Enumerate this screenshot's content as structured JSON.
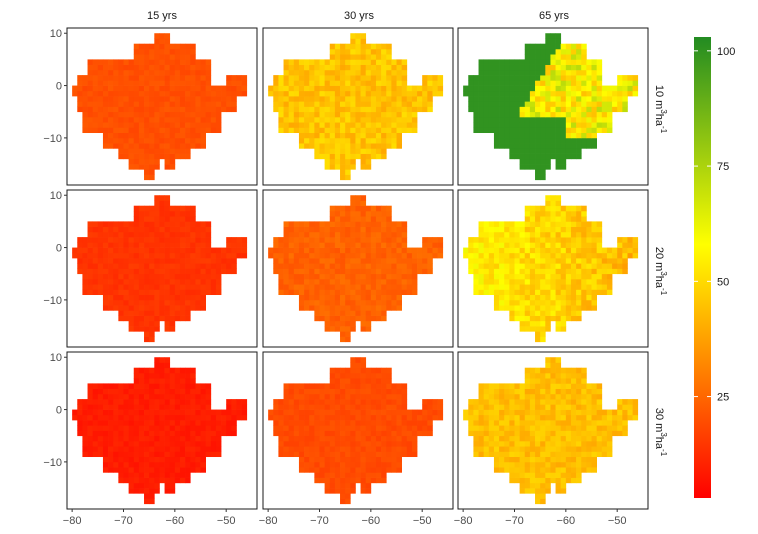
{
  "chart_data": {
    "type": "heatmap",
    "facet_columns": [
      "15 yrs",
      "30 yrs",
      "65 yrs"
    ],
    "facet_rows": [
      {
        "value": "10",
        "unit_prefix": "m",
        "unit_sup1": "3",
        "unit_mid": "ha",
        "unit_sup2": "-1"
      },
      {
        "value": "20",
        "unit_prefix": "m",
        "unit_sup1": "3",
        "unit_mid": "ha",
        "unit_sup2": "-1"
      },
      {
        "value": "30",
        "unit_prefix": "m",
        "unit_sup1": "3",
        "unit_mid": "ha",
        "unit_sup2": "-1"
      }
    ],
    "x_ticks": [
      "−80",
      "−70",
      "−60",
      "−50"
    ],
    "x_tick_values": [
      -80,
      -70,
      -60,
      -50
    ],
    "y_ticks": [
      "10",
      "0",
      "−10"
    ],
    "y_tick_values": [
      10,
      0,
      -10
    ],
    "xlim": [
      -81,
      -44
    ],
    "ylim": [
      -19,
      11
    ],
    "legend": {
      "labels": [
        "100",
        "75",
        "50",
        "25"
      ],
      "values": [
        100,
        75,
        50,
        25
      ],
      "range": [
        3,
        103
      ],
      "colors": [
        "#ff0000",
        "#ff8c00",
        "#ffff00",
        "#228b22"
      ]
    },
    "panels": [
      [
        {
          "mode": "uniform",
          "center": 20,
          "spread": 2
        },
        {
          "mode": "uniform",
          "center": 45,
          "spread": 6
        },
        {
          "mode": "split",
          "west": 100,
          "east_center": 58,
          "east_spread": 14
        }
      ],
      [
        {
          "mode": "uniform",
          "center": 14,
          "spread": 2
        },
        {
          "mode": "uniform",
          "center": 24,
          "spread": 3
        },
        {
          "mode": "gradient",
          "west": 56,
          "east": 42,
          "spread": 7
        }
      ],
      [
        {
          "mode": "uniform",
          "center": 9,
          "spread": 2
        },
        {
          "mode": "uniform",
          "center": 19,
          "spread": 2
        },
        {
          "mode": "uniform",
          "center": 44,
          "spread": 5
        }
      ]
    ]
  }
}
